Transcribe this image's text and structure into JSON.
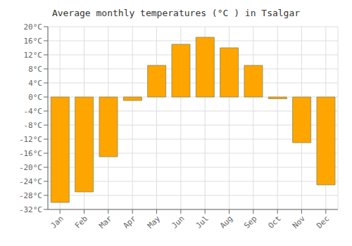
{
  "chart_data": {
    "type": "bar",
    "title": "Average monthly temperatures (°C ) in Tsalgar",
    "categories": [
      "Jan",
      "Feb",
      "Mar",
      "Apr",
      "May",
      "Jun",
      "Jul",
      "Aug",
      "Sep",
      "Oct",
      "Nov",
      "Dec"
    ],
    "values": [
      -30,
      -27,
      -17,
      -1,
      9,
      15,
      17,
      14,
      9,
      -0.5,
      -13,
      -25
    ],
    "color": "#FFA500",
    "ylim": [
      -32,
      20
    ],
    "yticks": [
      {
        "value": -32,
        "label": "-32°C"
      },
      {
        "value": -28,
        "label": "-28°C"
      },
      {
        "value": -24,
        "label": "-24°C"
      },
      {
        "value": -20,
        "label": "-20°C"
      },
      {
        "value": -16,
        "label": "-16°C"
      },
      {
        "value": -12,
        "label": "-12°C"
      },
      {
        "value": -8,
        "label": "-8°C"
      },
      {
        "value": -4,
        "label": "-4°C"
      },
      {
        "value": 0,
        "label": "0°C"
      },
      {
        "value": 4,
        "label": "4°C"
      },
      {
        "value": 8,
        "label": "8°C"
      },
      {
        "value": 12,
        "label": "12°C"
      },
      {
        "value": 16,
        "label": "16°C"
      },
      {
        "value": 20,
        "label": "20°C"
      }
    ],
    "grid": true
  }
}
